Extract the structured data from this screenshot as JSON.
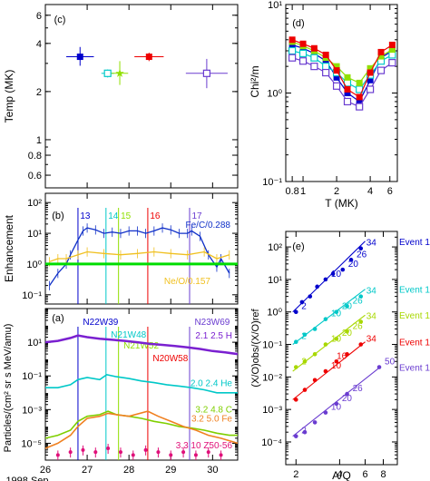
{
  "chart_data": [
    {
      "panel": "c",
      "type": "scatter",
      "panel_label": "(c)",
      "ylabel": "Temp (MK)",
      "y_scale": "log",
      "ylim": [
        0.5,
        7
      ],
      "xlim": [
        26,
        30.6
      ],
      "y_ticks": [
        0.6,
        0.8,
        1,
        2,
        4,
        6
      ],
      "y_ticklabels": [
        "0.6",
        "0.8",
        "1",
        "2",
        "4",
        "6"
      ],
      "series": [
        {
          "event": "13",
          "color": "#0000cc",
          "marker": "filled-square",
          "x": 26.83,
          "y": 3.3,
          "xerr": 0.33,
          "yerr": [
            0.4,
            0.5
          ]
        },
        {
          "event": "14",
          "color": "#00c8c8",
          "marker": "open-square",
          "x": 27.49,
          "y": 2.6,
          "xerr": 0.15,
          "yerr": [
            0.15,
            0.15
          ]
        },
        {
          "event": "15",
          "color": "#90e000",
          "marker": "star",
          "x": 27.78,
          "y": 2.6,
          "xerr": 0.2,
          "yerr": [
            0.4,
            0.5
          ]
        },
        {
          "event": "16",
          "color": "#ee0000",
          "marker": "filled-square",
          "x": 28.48,
          "y": 3.3,
          "xerr": 0.35,
          "yerr": [
            0.2,
            0.2
          ]
        },
        {
          "event": "17",
          "color": "#6a3cd0",
          "marker": "open-square",
          "x": 29.86,
          "y": 2.6,
          "xerr": 0.5,
          "yerr": [
            0.5,
            0.6
          ]
        }
      ]
    },
    {
      "panel": "b",
      "type": "line",
      "panel_label": "(b)",
      "ylabel": "Enhancement",
      "y_scale": "log",
      "ylim": [
        0.05,
        200
      ],
      "xlim": [
        26,
        30.6
      ],
      "y_ticks": [
        0.1,
        1,
        10,
        100
      ],
      "y_ticklabels": [
        "10⁻¹",
        "10⁰",
        "10¹",
        "10²"
      ],
      "event_lines": [
        {
          "label": "13",
          "x": 26.78,
          "color": "#0000cc"
        },
        {
          "label": "14",
          "x": 27.45,
          "color": "#00c8c8"
        },
        {
          "label": "15",
          "x": 27.75,
          "color": "#90e000"
        },
        {
          "label": "16",
          "x": 28.45,
          "color": "#ee0000"
        },
        {
          "label": "17",
          "x": 29.45,
          "color": "#6a3cd0"
        }
      ],
      "series": [
        {
          "name": "Fe/C/0.288",
          "color": "#1030c8",
          "x": [
            26.1,
            26.3,
            26.5,
            26.6,
            26.78,
            26.9,
            27.0,
            27.2,
            27.4,
            27.6,
            27.8,
            28.0,
            28.2,
            28.4,
            28.6,
            28.8,
            29.0,
            29.2,
            29.4,
            29.5,
            29.7,
            29.9,
            30.1,
            30.2,
            30.4
          ],
          "y": [
            0.2,
            0.5,
            1.0,
            2.0,
            6.0,
            12,
            15,
            13,
            10,
            11,
            10,
            12,
            12,
            10,
            12,
            15,
            13,
            10,
            10,
            12,
            8,
            2.0,
            0.8,
            1.5,
            0.5
          ]
        },
        {
          "name": "Ne/O/0.157",
          "color": "#f0c020",
          "x": [
            26.1,
            26.3,
            26.5,
            26.78,
            27.0,
            27.4,
            27.8,
            28.2,
            28.6,
            29.0,
            29.4,
            29.8,
            30.1,
            30.4
          ],
          "y": [
            1.2,
            1.5,
            1.5,
            2.0,
            2.5,
            2.2,
            2.0,
            2.2,
            2.5,
            2.2,
            2.0,
            2.5,
            1.5,
            2.0
          ]
        },
        {
          "name": "",
          "color": "#00dd00",
          "x": [
            26.0,
            30.6
          ],
          "y": [
            1.0,
            1.0
          ]
        }
      ]
    },
    {
      "panel": "a",
      "type": "line",
      "panel_label": "(a)",
      "ylabel": "Particles/(cm² sr s MeV/amu)",
      "y_scale": "log",
      "ylim": [
        1e-06,
        1000
      ],
      "xlim": [
        26,
        30.6
      ],
      "y_ticks": [
        1e-05,
        0.001,
        0.1,
        10
      ],
      "y_ticklabels": [
        "10⁻⁵",
        "10⁻³",
        "10⁻¹",
        "10¹"
      ],
      "x_ticks": [
        26,
        27,
        28,
        29,
        30
      ],
      "x_ticklabels": [
        "26",
        "27",
        "28",
        "29",
        "30"
      ],
      "xlabel": "1998 Sep",
      "annotations": [
        {
          "text": "N22W39",
          "x": 26.8,
          "color": "#0000cc"
        },
        {
          "text": "N21W48",
          "x": 27.47,
          "color": "#00c8c8"
        },
        {
          "text": "N21W52",
          "x": 27.77,
          "color": "#90e000"
        },
        {
          "text": "N20W58",
          "x": 28.47,
          "color": "#ee0000"
        },
        {
          "text": "N23W69",
          "x": 29.47,
          "color": "#6a3cd0"
        }
      ],
      "event_lines": [
        {
          "x": 26.78,
          "color": "#0000cc"
        },
        {
          "x": 27.45,
          "color": "#00c8c8"
        },
        {
          "x": 27.75,
          "color": "#90e000"
        },
        {
          "x": 28.45,
          "color": "#ee0000"
        },
        {
          "x": 29.45,
          "color": "#6a3cd0"
        }
      ],
      "series": [
        {
          "name": "2.1 2.5 H",
          "color": "#7a20d0",
          "x": [
            26.0,
            26.3,
            26.6,
            26.78,
            27.0,
            27.3,
            27.6,
            27.9,
            28.2,
            28.5,
            28.8,
            29.1,
            29.4,
            29.7,
            30.0,
            30.3,
            30.6
          ],
          "y": [
            10,
            12,
            18,
            25,
            20,
            16,
            14,
            12,
            10,
            8,
            7,
            6,
            5,
            4,
            3,
            2.5,
            2
          ]
        },
        {
          "name": "2.0 2.4 He",
          "color": "#00c8c8",
          "x": [
            26.0,
            26.3,
            26.6,
            26.78,
            27.0,
            27.3,
            27.47,
            27.7,
            28.0,
            28.3,
            28.6,
            28.9,
            29.2,
            29.5,
            29.8,
            30.1,
            30.4,
            30.6
          ],
          "y": [
            0.02,
            0.02,
            0.03,
            0.06,
            0.08,
            0.06,
            0.12,
            0.09,
            0.07,
            0.05,
            0.04,
            0.03,
            0.025,
            0.02,
            0.015,
            0.01,
            0.01,
            0.01
          ]
        },
        {
          "name": "3.2 4.8 C",
          "color": "#7fcf00",
          "x": [
            26.0,
            26.3,
            26.6,
            26.78,
            27.0,
            27.3,
            27.5,
            27.7,
            28.0,
            28.3,
            28.6,
            28.9,
            29.2,
            29.5,
            29.8,
            30.1,
            30.4,
            30.6
          ],
          "y": [
            2e-05,
            3e-05,
            6e-05,
            0.0002,
            0.0004,
            0.0005,
            0.0008,
            0.0005,
            0.0004,
            0.0003,
            0.0002,
            0.00015,
            0.0001,
            8e-05,
            6e-05,
            4e-05,
            3e-05,
            3e-05
          ]
        },
        {
          "name": "3.2 5.0 Fe",
          "color": "#f08020",
          "x": [
            26.0,
            26.3,
            26.6,
            26.78,
            27.0,
            27.3,
            27.5,
            27.7,
            28.0,
            28.45,
            28.7,
            29.0,
            29.3,
            29.6,
            29.9,
            30.2,
            30.6
          ],
          "y": [
            5e-06,
            1e-05,
            3e-05,
            0.0001,
            0.0003,
            0.0004,
            0.0006,
            0.0005,
            0.0004,
            0.0008,
            0.0004,
            0.0002,
            0.0001,
            6e-05,
            3e-05,
            2e-05,
            1e-05
          ]
        },
        {
          "name": "3.3 10 Z50-56",
          "color": "#e0107a",
          "x": [
            26.3,
            26.6,
            26.9,
            27.2,
            27.5,
            27.8,
            28.1,
            28.4,
            28.7,
            29.0,
            29.3,
            29.6,
            29.9,
            30.2
          ],
          "y": [
            2e-06,
            3e-06,
            4e-06,
            3e-06,
            5e-06,
            3e-06,
            2e-06,
            4e-06,
            3e-06,
            2e-06,
            3e-06,
            2e-06,
            3e-06,
            2e-06
          ]
        }
      ]
    },
    {
      "panel": "d",
      "type": "line",
      "panel_label": "(d)",
      "ylabel": "Chi²/m",
      "xlabel": "T (MK)",
      "x_scale": "log",
      "y_scale": "log",
      "xlim": [
        0.7,
        7
      ],
      "ylim": [
        0.1,
        10
      ],
      "x_ticks": [
        0.8,
        1,
        2,
        4,
        6
      ],
      "x_ticklabels": [
        "0.8",
        "1",
        "2",
        "4",
        "6"
      ],
      "y_ticks": [
        0.1,
        1,
        10
      ],
      "y_ticklabels": [
        "10⁻¹",
        "10⁰",
        "10¹"
      ],
      "series": [
        {
          "event": "13",
          "color": "#0000cc",
          "marker": "filled-square",
          "x": [
            0.8,
            1.0,
            1.26,
            1.6,
            2.0,
            2.5,
            3.2,
            4.0,
            5.0,
            6.3
          ],
          "y": [
            3.5,
            3.2,
            2.8,
            2.3,
            1.5,
            1.0,
            0.8,
            1.4,
            2.5,
            3.0
          ]
        },
        {
          "event": "14",
          "color": "#00c8c8",
          "marker": "open-square",
          "x": [
            0.8,
            1.0,
            1.26,
            1.6,
            2.0,
            2.5,
            3.2,
            4.0,
            5.0,
            6.3
          ],
          "y": [
            3.0,
            2.8,
            2.5,
            2.0,
            1.7,
            1.3,
            1.1,
            1.6,
            2.3,
            2.7
          ]
        },
        {
          "event": "15",
          "color": "#90e000",
          "marker": "filled-square",
          "x": [
            0.8,
            1.0,
            1.26,
            1.6,
            2.0,
            2.5,
            3.2,
            4.0,
            5.0,
            6.3
          ],
          "y": [
            3.8,
            3.4,
            3.0,
            2.5,
            2.0,
            1.5,
            1.3,
            1.9,
            2.6,
            3.1
          ]
        },
        {
          "event": "16",
          "color": "#ee0000",
          "marker": "filled-square",
          "x": [
            0.8,
            1.0,
            1.26,
            1.6,
            2.0,
            2.5,
            3.2,
            4.0,
            5.0,
            6.3
          ],
          "y": [
            4.0,
            3.6,
            3.2,
            2.7,
            1.8,
            1.1,
            0.9,
            1.7,
            2.9,
            3.5
          ]
        },
        {
          "event": "17",
          "color": "#6a3cd0",
          "marker": "open-square",
          "x": [
            0.8,
            1.0,
            1.26,
            1.6,
            2.0,
            2.5,
            3.2,
            4.0,
            5.0,
            6.3
          ],
          "y": [
            2.5,
            2.3,
            2.0,
            1.7,
            1.2,
            0.8,
            0.7,
            1.1,
            1.8,
            2.2
          ]
        }
      ]
    },
    {
      "panel": "e",
      "type": "scatter",
      "panel_label": "(e)",
      "ylabel": "(X/O)obs/(X/O)ref",
      "xlabel": "A/Q",
      "x_scale": "log",
      "y_scale": "log",
      "xlim": [
        1.7,
        10
      ],
      "ylim": [
        2e-05,
        300
      ],
      "x_ticks": [
        2,
        4,
        6,
        8
      ],
      "x_ticklabels": [
        "2",
        "4",
        "6",
        "8"
      ],
      "y_ticks": [
        0.0001,
        0.001,
        0.01,
        0.1,
        1,
        10,
        100
      ],
      "y_ticklabels": [
        "10⁻⁴",
        "10⁻³",
        "10⁻²",
        "10⁻¹",
        "10⁰",
        "10¹",
        "10²"
      ],
      "series": [
        {
          "name": "Event 13",
          "color": "#0000cc",
          "fit": {
            "x": [
              1.9,
              6.0
            ],
            "y": [
              1.0,
              150
            ]
          },
          "points_x": [
            2.0,
            2.2,
            2.5,
            2.8,
            3.2,
            3.6,
            4.2,
            4.8,
            5.6
          ],
          "points_y": [
            1.0,
            2.0,
            3.0,
            6.0,
            10,
            15,
            20,
            40,
            90
          ],
          "labels": [
            {
              "text": "2",
              "x": 2.0,
              "y": 1.0
            },
            {
              "text": "10",
              "x": 3.2,
              "y": 10
            },
            {
              "text": "20",
              "x": 4.2,
              "y": 20
            },
            {
              "text": "26",
              "x": 4.8,
              "y": 40
            },
            {
              "text": "34",
              "x": 5.6,
              "y": 90
            }
          ]
        },
        {
          "name": "Event 14",
          "color": "#00c8c8",
          "fit": {
            "x": [
              1.9,
              6.0
            ],
            "y": [
              0.1,
              5.0
            ]
          },
          "points_x": [
            2.0,
            2.3,
            2.7,
            3.2,
            3.8,
            4.5,
            5.6
          ],
          "points_y": [
            0.12,
            0.2,
            0.3,
            0.6,
            1.0,
            1.5,
            3.0
          ],
          "labels": [
            {
              "text": "2",
              "x": 2.0,
              "y": 0.12
            },
            {
              "text": "10",
              "x": 3.2,
              "y": 0.6
            },
            {
              "text": "20",
              "x": 3.8,
              "y": 1.0
            },
            {
              "text": "26",
              "x": 4.5,
              "y": 1.5
            },
            {
              "text": "34",
              "x": 5.6,
              "y": 3.0
            }
          ]
        },
        {
          "name": "Event 15",
          "color": "#a8d800",
          "fit": {
            "x": [
              1.9,
              6.0
            ],
            "y": [
              0.015,
              0.8
            ]
          },
          "points_x": [
            2.0,
            2.3,
            2.7,
            3.2,
            3.8,
            4.5,
            5.6
          ],
          "points_y": [
            0.02,
            0.03,
            0.05,
            0.1,
            0.15,
            0.25,
            0.5
          ],
          "labels": [
            {
              "text": "2",
              "x": 2.0,
              "y": 0.02
            },
            {
              "text": "10",
              "x": 3.2,
              "y": 0.1
            },
            {
              "text": "20",
              "x": 3.8,
              "y": 0.15
            },
            {
              "text": "26",
              "x": 4.5,
              "y": 0.25
            },
            {
              "text": "34",
              "x": 5.6,
              "y": 0.5
            }
          ]
        },
        {
          "name": "Event 16",
          "color": "#ee0000",
          "fit": {
            "x": [
              1.9,
              6.0
            ],
            "y": [
              0.002,
              0.12
            ]
          },
          "points_x": [
            2.0,
            2.3,
            2.7,
            3.2,
            3.8,
            4.5,
            5.6
          ],
          "points_y": [
            0.002,
            0.004,
            0.008,
            0.015,
            0.03,
            0.05,
            0.1
          ],
          "labels": [
            {
              "text": "10",
              "x": 3.2,
              "y": 0.015
            },
            {
              "text": "16",
              "x": 3.5,
              "y": 0.03
            },
            {
              "text": "34",
              "x": 5.6,
              "y": 0.1
            }
          ]
        },
        {
          "name": "Event 17",
          "color": "#6a3cd0",
          "fit": {
            "x": [
              1.9,
              7.6
            ],
            "y": [
              0.00015,
              0.02
            ]
          },
          "points_x": [
            2.0,
            2.3,
            2.7,
            3.2,
            3.8,
            4.5,
            7.5
          ],
          "points_y": [
            0.00015,
            0.0002,
            0.0004,
            0.0008,
            0.0015,
            0.003,
            0.02
          ],
          "labels": [
            {
              "text": "2",
              "x": 2.0,
              "y": 0.00015
            },
            {
              "text": "10",
              "x": 3.2,
              "y": 0.0008
            },
            {
              "text": "20",
              "x": 3.8,
              "y": 0.0015
            },
            {
              "text": "26",
              "x": 4.5,
              "y": 0.003
            },
            {
              "text": "50",
              "x": 7.5,
              "y": 0.02
            }
          ]
        }
      ]
    }
  ]
}
